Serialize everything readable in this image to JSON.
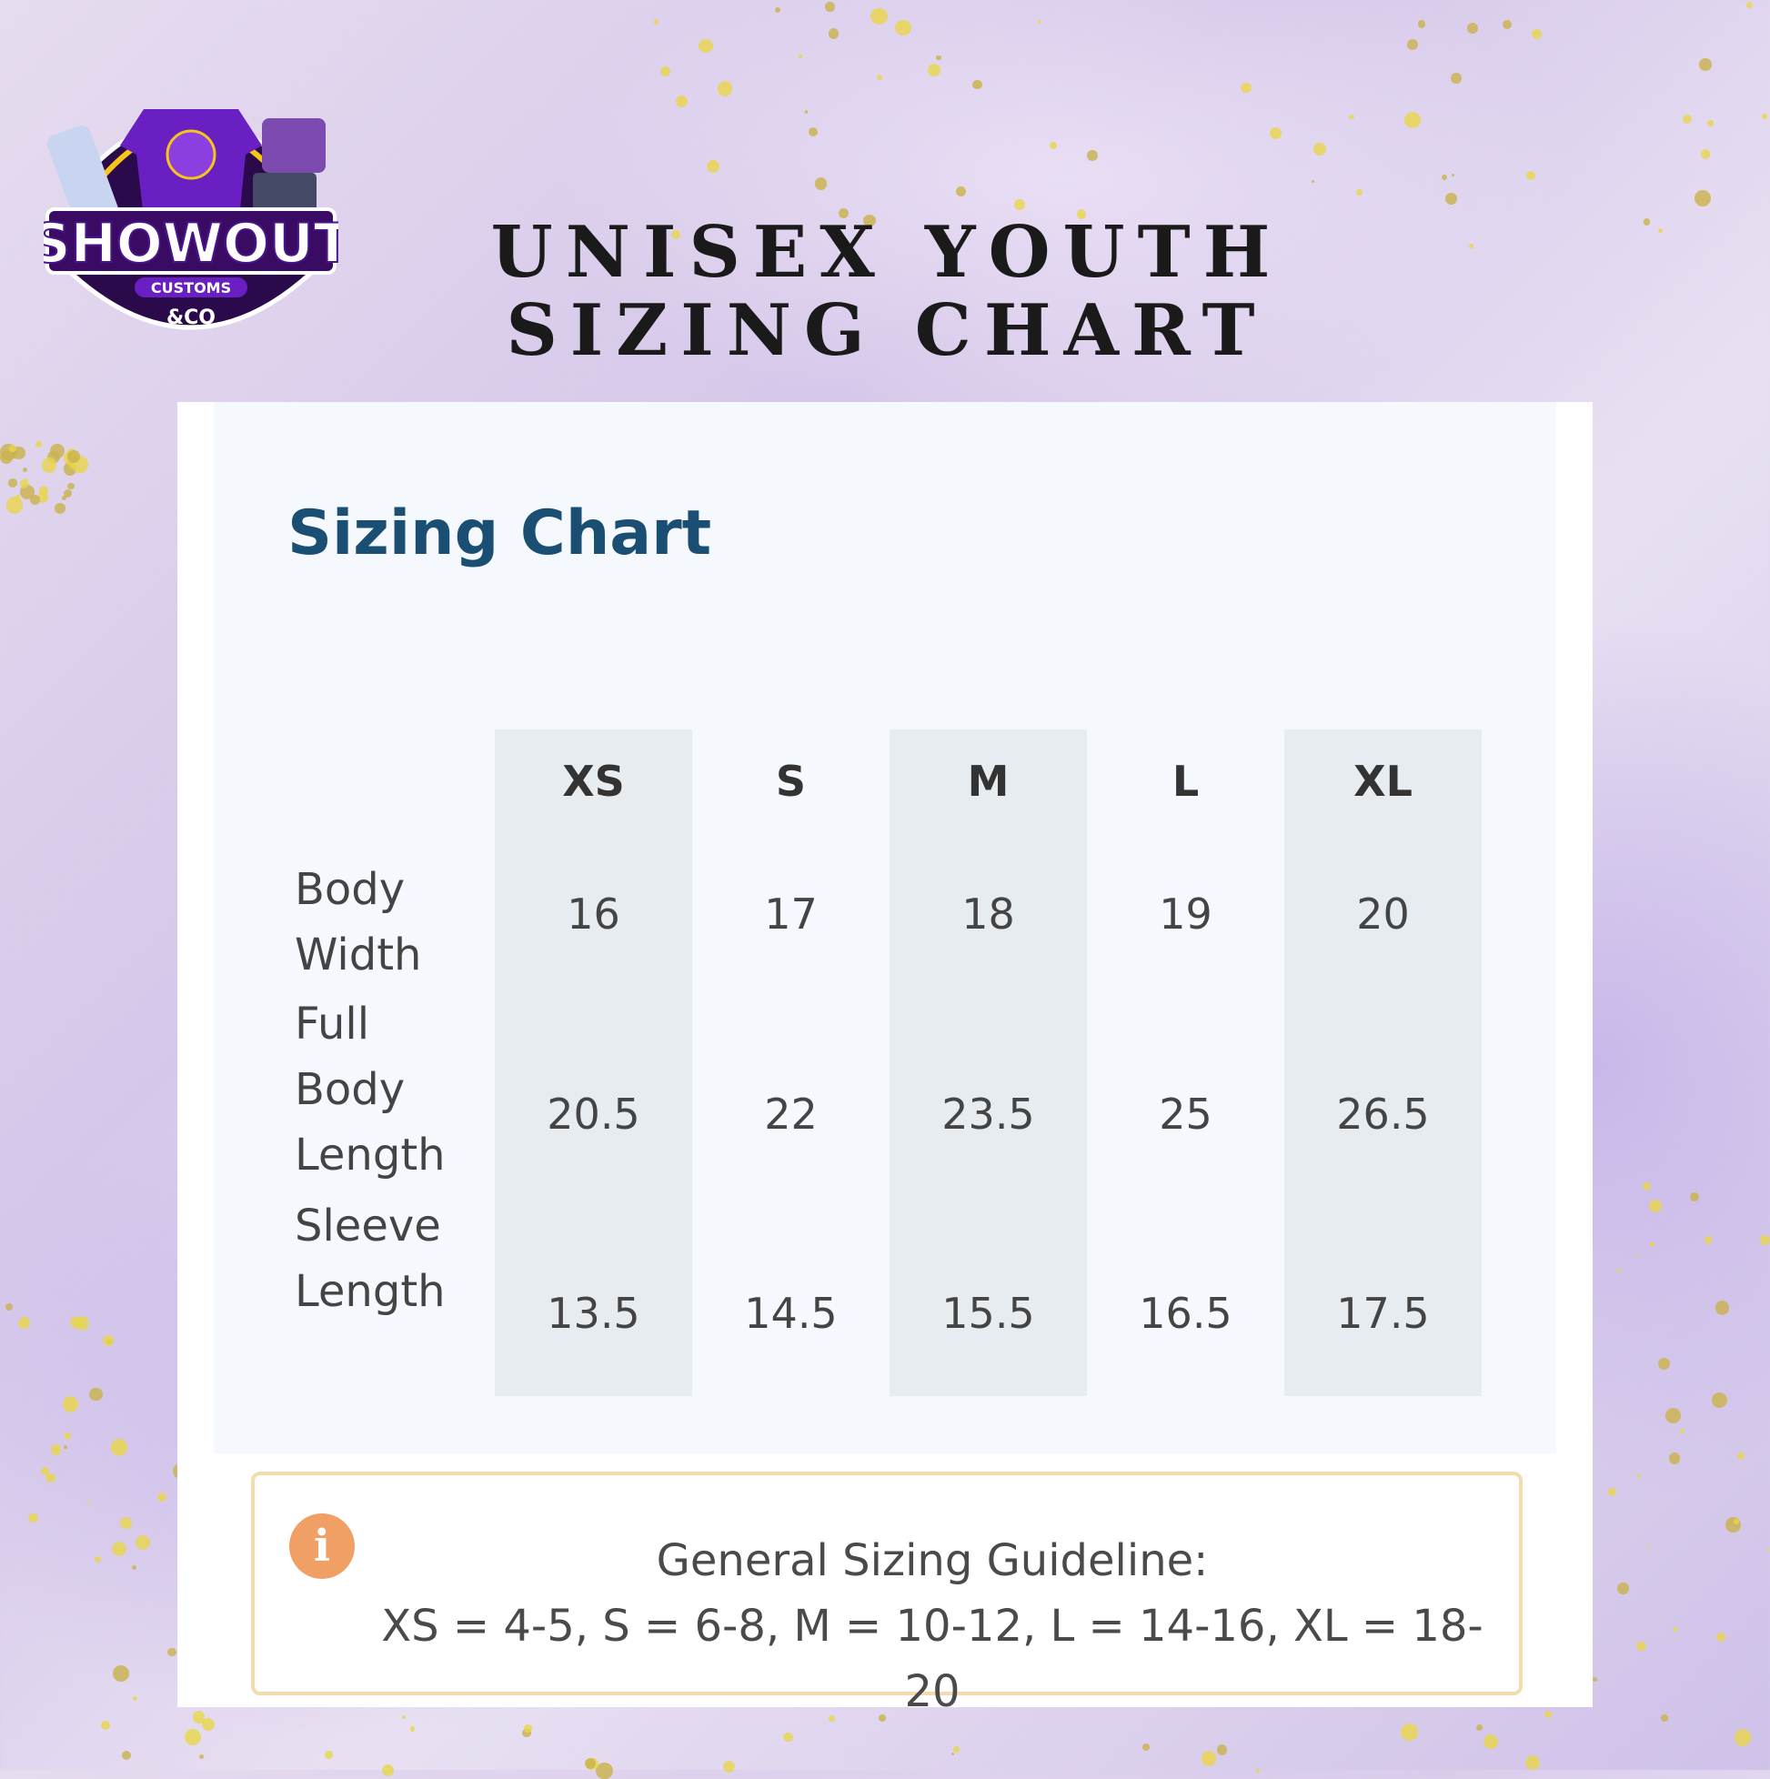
{
  "header": {
    "title": "UNISEX YOUTH SIZING CHART",
    "logo": {
      "brand": "SHOWOUT",
      "sub": "CUSTOMS",
      "suffix": "&CO",
      "shirt_text": "Showout"
    }
  },
  "chart": {
    "heading": "Sizing Chart",
    "sizes": [
      "XS",
      "S",
      "M",
      "L",
      "XL"
    ],
    "rows": [
      {
        "label": "Body Width",
        "values": [
          "16",
          "17",
          "18",
          "19",
          "20"
        ]
      },
      {
        "label": "Full Body Length",
        "values": [
          "20.5",
          "22",
          "23.5",
          "25",
          "26.5"
        ]
      },
      {
        "label": "Sleeve Length",
        "values": [
          "13.5",
          "14.5",
          "15.5",
          "16.5",
          "17.5"
        ]
      }
    ]
  },
  "info": {
    "icon": "info-icon",
    "title": "General Sizing Guideline:",
    "text": "XS = 4-5, S = 6-8, M = 10-12, L = 14-16, XL = 18-20"
  },
  "colors": {
    "heading": "#1a4e73",
    "shade": "#e7ecf0",
    "info_icon": "#f0a065",
    "info_border": "#f2dcae"
  }
}
